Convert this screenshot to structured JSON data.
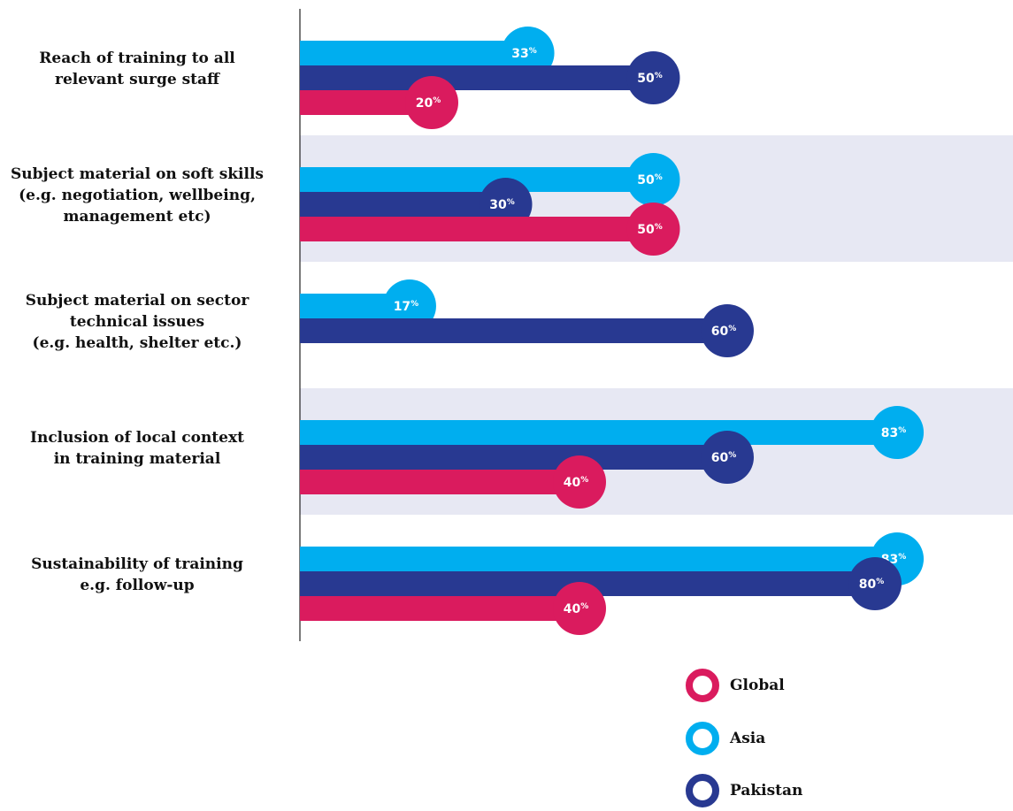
{
  "chart_data": {
    "type": "bar",
    "orientation": "horizontal",
    "categories": [
      [
        "Reach of training to all",
        "relevant surge staff"
      ],
      [
        "Subject material on soft skills",
        "(e.g. negotiation, wellbeing,",
        "management etc)"
      ],
      [
        "Subject material on sector",
        "technical issues",
        "(e.g. health, shelter etc.)"
      ],
      [
        "Inclusion of local context",
        "in training material"
      ],
      [
        "Sustainability of training",
        "e.g. follow-up"
      ]
    ],
    "series": [
      {
        "name": "Asia",
        "color": "#00AEEF",
        "values": [
          33,
          50,
          17,
          83,
          83
        ]
      },
      {
        "name": "Pakistan",
        "color": "#283991",
        "values": [
          50,
          30,
          60,
          60,
          80
        ]
      },
      {
        "name": "Global",
        "color": "#DA1B5E",
        "values": [
          20,
          50,
          null,
          40,
          40
        ]
      }
    ],
    "value_suffix": "%",
    "xlim": [
      0,
      100
    ],
    "band_color": "#E7E8F3",
    "legend": {
      "position": "bottom-right",
      "order": [
        "Global",
        "Asia",
        "Pakistan"
      ]
    }
  }
}
